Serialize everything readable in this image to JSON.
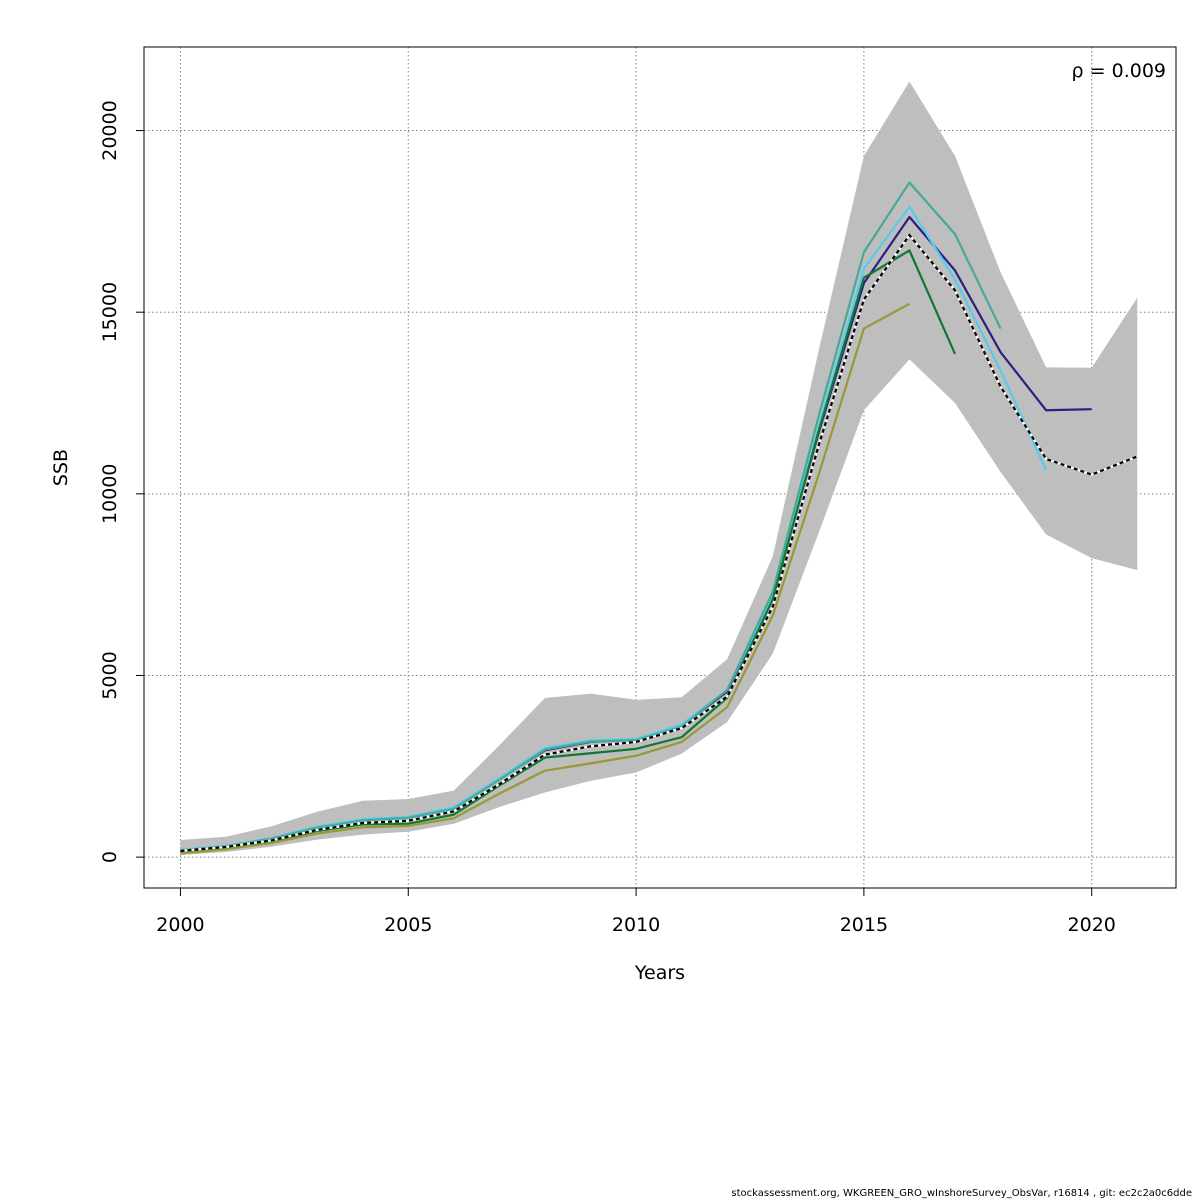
{
  "chart_data": {
    "type": "line",
    "xlabel": "Years",
    "ylabel": "SSB",
    "xlim": [
      1999.2,
      2021.85
    ],
    "ylim": [
      -850,
      22300
    ],
    "x_ticks": [
      2000,
      2005,
      2010,
      2015,
      2020
    ],
    "y_ticks": [
      0,
      5000,
      10000,
      15000,
      20000
    ],
    "grid": true,
    "annotation": "ρ = 0.009",
    "band": {
      "x": [
        2000,
        2001,
        2002,
        2003,
        2004,
        2005,
        2006,
        2007,
        2008,
        2009,
        2010,
        2011,
        2012,
        2013,
        2014,
        2015,
        2016,
        2017,
        2018,
        2019,
        2020,
        2021
      ],
      "upper": [
        470,
        560,
        850,
        1250,
        1550,
        1600,
        1830,
        3080,
        4380,
        4500,
        4330,
        4400,
        5450,
        8280,
        13900,
        19300,
        21350,
        19300,
        16100,
        13480,
        13470,
        15400
      ],
      "lower": [
        60,
        140,
        290,
        480,
        620,
        700,
        920,
        1380,
        1780,
        2100,
        2330,
        2850,
        3720,
        5600,
        8900,
        12300,
        13700,
        12500,
        10600,
        8880,
        8230,
        7900
      ],
      "color": "#bebebe"
    },
    "series": [
      {
        "color": "#000000",
        "dashed": true,
        "x": [
          2000,
          2001,
          2002,
          2003,
          2004,
          2005,
          2006,
          2007,
          2008,
          2009,
          2010,
          2011,
          2012,
          2013,
          2014,
          2015,
          2016,
          2017,
          2018,
          2019,
          2020,
          2021
        ],
        "values": [
          170,
          280,
          460,
          750,
          940,
          1000,
          1260,
          2010,
          2820,
          3050,
          3170,
          3550,
          4420,
          6900,
          11300,
          15350,
          17120,
          15600,
          12950,
          10960,
          10530,
          11030
        ]
      },
      {
        "color": "#2c1f80",
        "dashed": false,
        "x": [
          2000,
          2001,
          2002,
          2003,
          2004,
          2005,
          2006,
          2007,
          2008,
          2009,
          2010,
          2011,
          2012,
          2013,
          2014,
          2015,
          2016,
          2017,
          2018,
          2019,
          2020
        ],
        "values": [
          190,
          300,
          500,
          820,
          1030,
          1090,
          1360,
          2150,
          2940,
          3170,
          3230,
          3610,
          4560,
          7200,
          11650,
          15800,
          17620,
          16150,
          13900,
          12300,
          12330
        ]
      },
      {
        "color": "#55ccee",
        "dashed": false,
        "x": [
          2000,
          2001,
          2002,
          2003,
          2004,
          2005,
          2006,
          2007,
          2008,
          2009,
          2010,
          2011,
          2012,
          2013,
          2014,
          2015,
          2016,
          2017,
          2018,
          2019
        ],
        "values": [
          200,
          310,
          520,
          840,
          1040,
          1110,
          1370,
          2170,
          3000,
          3210,
          3250,
          3650,
          4600,
          7200,
          11800,
          16200,
          17900,
          15900,
          13400,
          10650
        ]
      },
      {
        "color": "#44aa99",
        "dashed": false,
        "x": [
          2000,
          2001,
          2002,
          2003,
          2004,
          2005,
          2006,
          2007,
          2008,
          2009,
          2010,
          2011,
          2012,
          2013,
          2014,
          2015,
          2016,
          2017,
          2018
        ],
        "values": [
          180,
          300,
          510,
          810,
          1010,
          1080,
          1330,
          2130,
          2960,
          3180,
          3220,
          3590,
          4600,
          7300,
          12100,
          16650,
          18570,
          17150,
          14550
        ]
      },
      {
        "color": "#117733",
        "dashed": false,
        "x": [
          2000,
          2001,
          2002,
          2003,
          2004,
          2005,
          2006,
          2007,
          2008,
          2009,
          2010,
          2011,
          2012,
          2013,
          2014,
          2015,
          2016,
          2017
        ],
        "values": [
          160,
          270,
          440,
          720,
          900,
          920,
          1170,
          1970,
          2740,
          2860,
          2980,
          3300,
          4390,
          7100,
          11700,
          15950,
          16700,
          13850
        ]
      },
      {
        "color": "#999933",
        "dashed": false,
        "x": [
          2000,
          2001,
          2002,
          2003,
          2004,
          2005,
          2006,
          2007,
          2008,
          2009,
          2010,
          2011,
          2012,
          2013,
          2014,
          2015,
          2016
        ],
        "values": [
          100,
          220,
          390,
          650,
          820,
          860,
          1070,
          1750,
          2380,
          2580,
          2790,
          3170,
          4130,
          6650,
          10500,
          14550,
          15230
        ]
      }
    ]
  },
  "footer": "stockassessment.org, WKGREEN_GRO_wInshoreSurvey_ObsVar, r16814 , git: ec2c2a0c6dde"
}
